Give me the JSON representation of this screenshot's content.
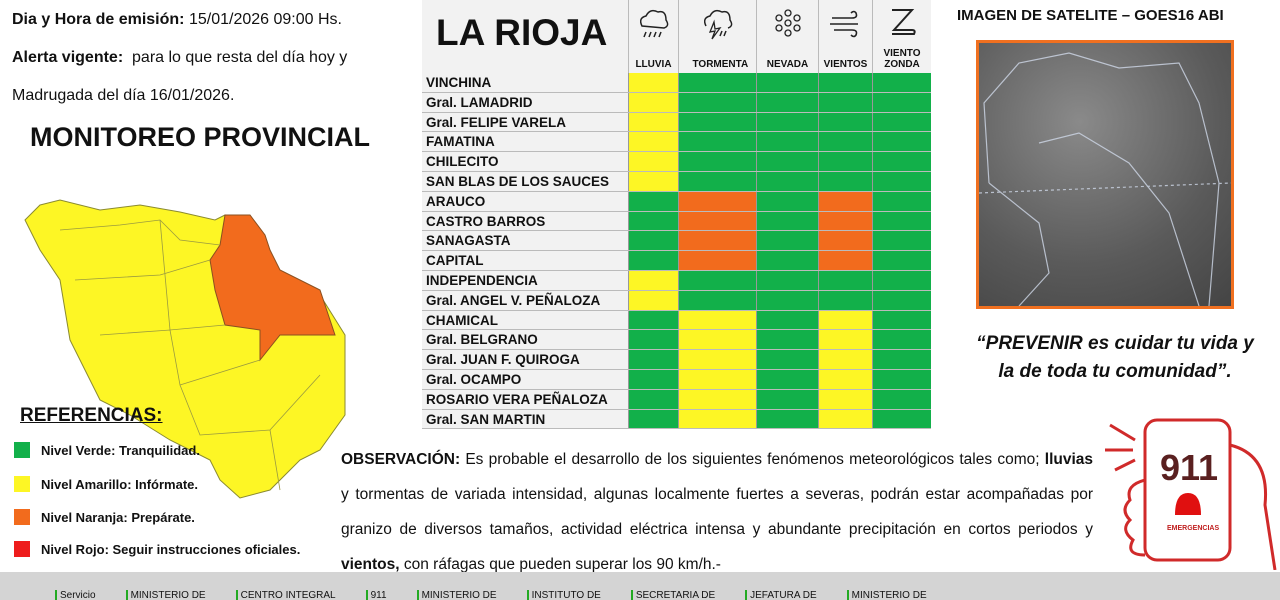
{
  "header": {
    "emission_label": "Dia y Hora de emisión:",
    "emission_value": "15/01/2026  09:00 Hs.",
    "alert_label": "Alerta vigente:",
    "alert_value": "para lo que resta del día hoy y",
    "alert_value2": "Madrugada del día 16/01/2026."
  },
  "monitoring_title": "MONITOREO PROVINCIAL",
  "references": {
    "title": "REFERENCIAS:",
    "items": [
      {
        "label": "Nivel Verde: Tranquilidad.",
        "color": "#12b04a"
      },
      {
        "label": "Nivel Amarillo: Infórmate.",
        "color": "#fdf625"
      },
      {
        "label": "Nivel Naranja: Prepárate.",
        "color": "#f26b1d"
      },
      {
        "label": "Nivel Rojo: Seguir instrucciones oficiales.",
        "color": "#ee1c1c"
      }
    ]
  },
  "colors": {
    "G": "#12b04a",
    "Y": "#fdf625",
    "O": "#f26b1d"
  },
  "table": {
    "title": "LA RIOJA",
    "columns": [
      {
        "label": "LLUVIA",
        "icon": "rain-cloud-icon"
      },
      {
        "label": "TORMENTA",
        "icon": "storm-cloud-icon"
      },
      {
        "label": "NEVADA",
        "icon": "snowflake-icon"
      },
      {
        "label": "VIENTOS",
        "icon": "wind-icon"
      },
      {
        "label": "VIENTO ZONDA",
        "icon": "zonda-icon"
      }
    ],
    "rows": [
      {
        "name": "VINCHINA",
        "levels": [
          "Y",
          "G",
          "G",
          "G",
          "G"
        ]
      },
      {
        "name": "Gral. LAMADRID",
        "levels": [
          "Y",
          "G",
          "G",
          "G",
          "G"
        ]
      },
      {
        "name": "Gral. FELIPE VARELA",
        "levels": [
          "Y",
          "G",
          "G",
          "G",
          "G"
        ]
      },
      {
        "name": "FAMATINA",
        "levels": [
          "Y",
          "G",
          "G",
          "G",
          "G"
        ]
      },
      {
        "name": "CHILECITO",
        "levels": [
          "Y",
          "G",
          "G",
          "G",
          "G"
        ]
      },
      {
        "name": "SAN BLAS DE LOS SAUCES",
        "levels": [
          "Y",
          "G",
          "G",
          "G",
          "G"
        ]
      },
      {
        "name": "ARAUCO",
        "levels": [
          "G",
          "O",
          "G",
          "O",
          "G"
        ]
      },
      {
        "name": "CASTRO BARROS",
        "levels": [
          "G",
          "O",
          "G",
          "O",
          "G"
        ]
      },
      {
        "name": "SANAGASTA",
        "levels": [
          "G",
          "O",
          "G",
          "O",
          "G"
        ]
      },
      {
        "name": "CAPITAL",
        "levels": [
          "G",
          "O",
          "G",
          "O",
          "G"
        ]
      },
      {
        "name": "INDEPENDENCIA",
        "levels": [
          "Y",
          "G",
          "G",
          "G",
          "G"
        ]
      },
      {
        "name": "Gral. ANGEL V. PEÑALOZA",
        "levels": [
          "Y",
          "G",
          "G",
          "G",
          "G"
        ]
      },
      {
        "name": "CHAMICAL",
        "levels": [
          "G",
          "Y",
          "G",
          "Y",
          "G"
        ]
      },
      {
        "name": "Gral. BELGRANO",
        "levels": [
          "G",
          "Y",
          "G",
          "Y",
          "G"
        ]
      },
      {
        "name": "Gral. JUAN F. QUIROGA",
        "levels": [
          "G",
          "Y",
          "G",
          "Y",
          "G"
        ]
      },
      {
        "name": "Gral. OCAMPO",
        "levels": [
          "G",
          "Y",
          "G",
          "Y",
          "G"
        ]
      },
      {
        "name": "ROSARIO VERA PEÑALOZA",
        "levels": [
          "G",
          "Y",
          "G",
          "Y",
          "G"
        ]
      },
      {
        "name": "Gral. SAN MARTIN",
        "levels": [
          "G",
          "Y",
          "G",
          "Y",
          "G"
        ]
      }
    ]
  },
  "satellite": {
    "title": "IMAGEN DE SATELITE – GOES16 ABI"
  },
  "motto": {
    "line1": "“PREVENIR es cuidar tu vida y",
    "line2": "la de toda tu comunidad”."
  },
  "observation": {
    "label": "OBSERVACIÓN:",
    "text1": " Es probable el desarrollo de los siguientes fenómenos meteorológicos tales como;",
    "bold1": "lluvias",
    "text2": " y tormentas de variada intensidad, algunas localmente fuertes a severas, podrán estar acompañadas por granizo de diversos tamaños, actividad eléctrica intensa y abundante precipitación en cortos periodos y ",
    "bold2": "vientos,",
    "text3": " con ráfagas que pueden superar los 90 km/h.-"
  },
  "emergency_logo": {
    "number": "911",
    "label": "EMERGENCIAS"
  },
  "footer": [
    "Servicio",
    "MINISTERIO DE",
    "CENTRO INTEGRAL",
    "911",
    "MINISTERIO DE",
    "INSTITUTO DE",
    "SECRETARIA DE",
    "JEFATURA DE",
    "MINISTERIO DE"
  ]
}
